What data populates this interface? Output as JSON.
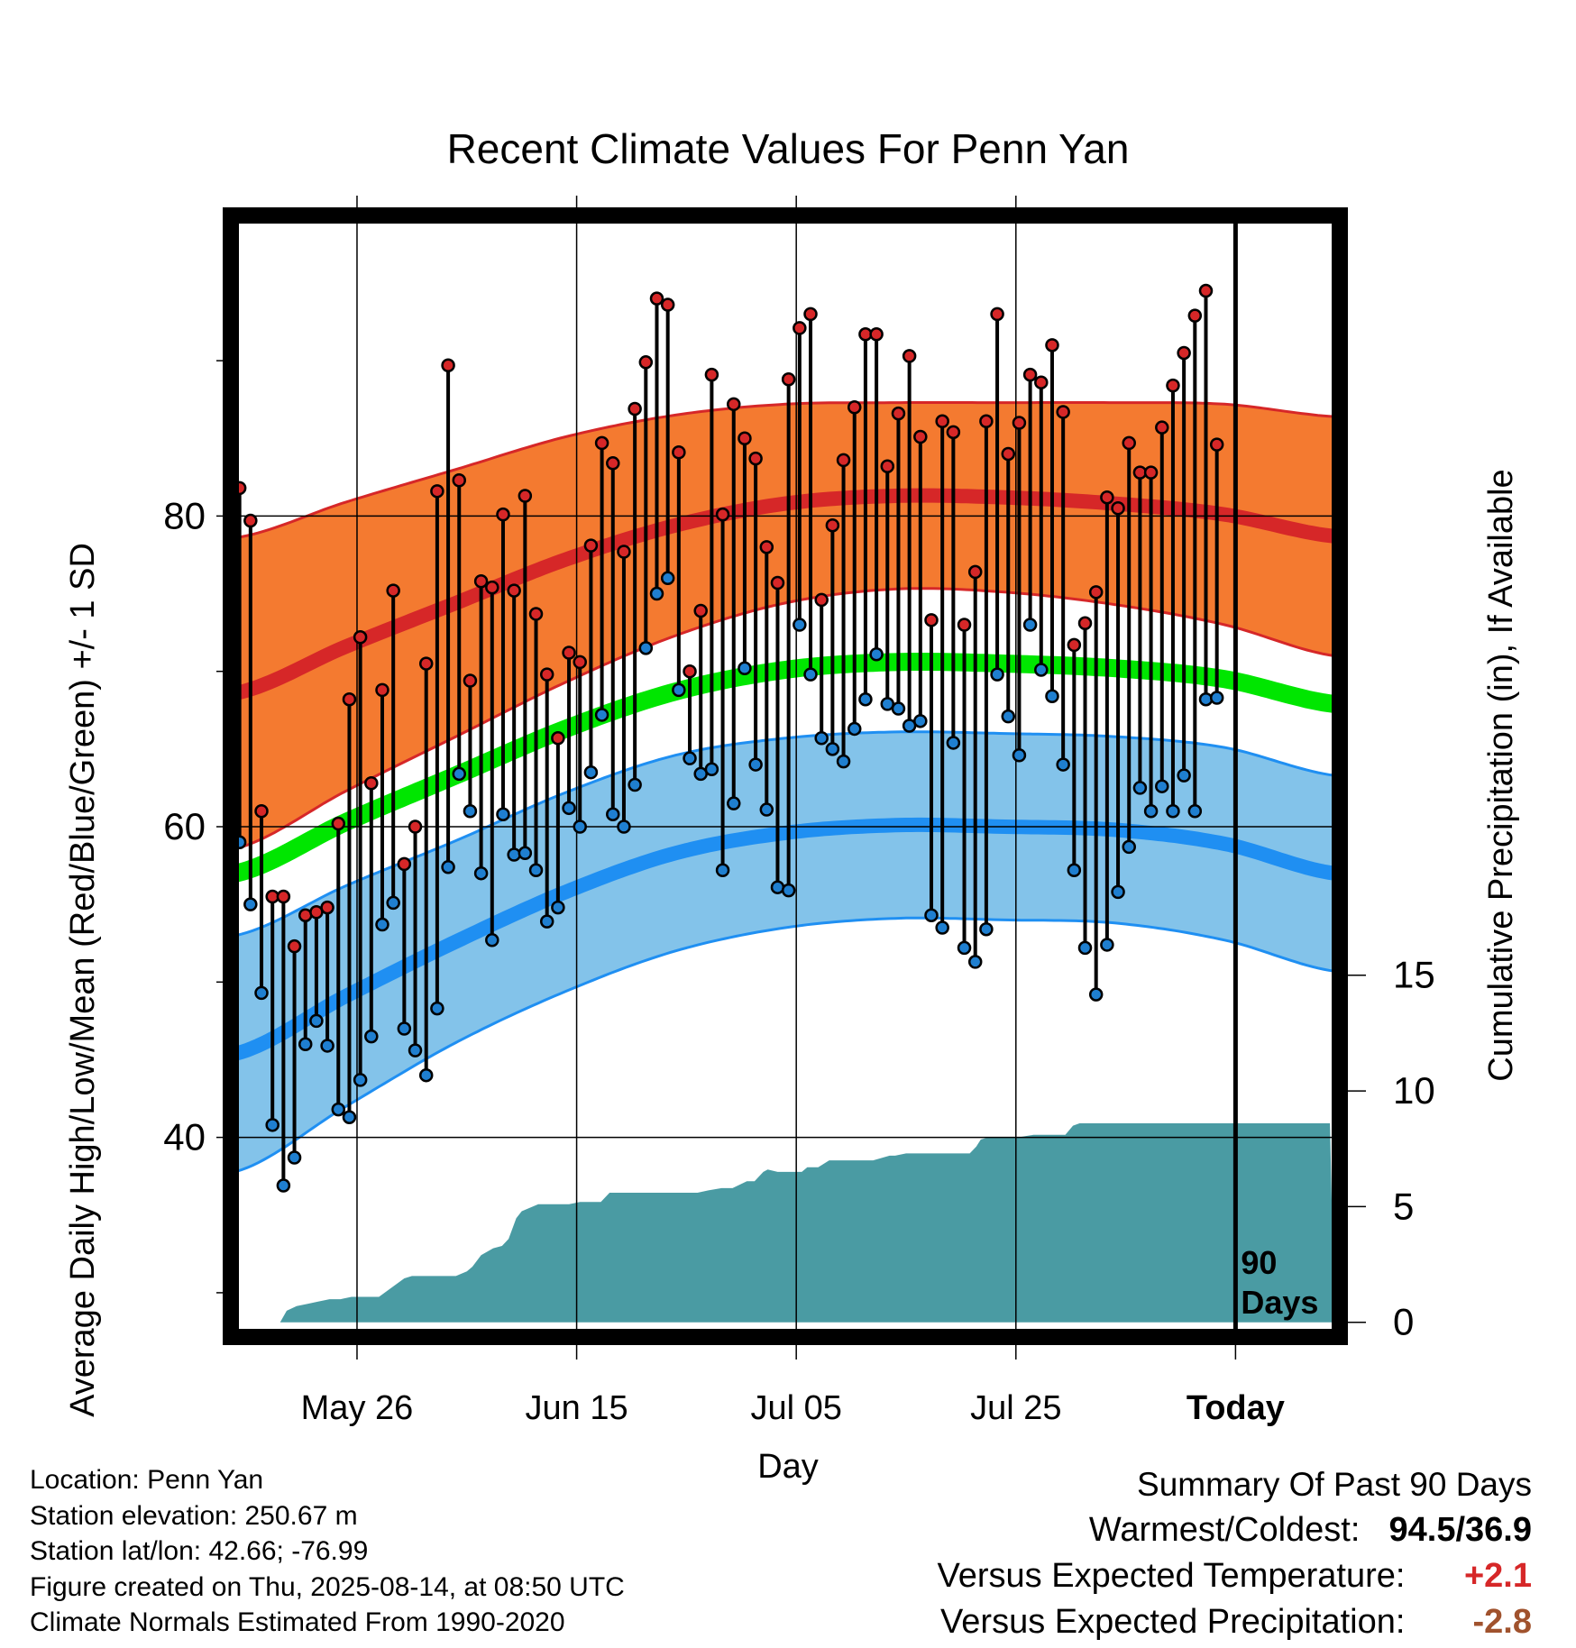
{
  "chart_data": {
    "type": "line",
    "title": "Recent Climate Values For Penn Yan",
    "xlabel": "Day",
    "ylabel": "Average Daily High/Low/Mean (Red/Blue/Green) +/- 1 SD",
    "y2label": "Cumulative Precipitation (in), If Available",
    "y_ticks": [
      40,
      60,
      80
    ],
    "y2_ticks": [
      0,
      5,
      10,
      15
    ],
    "x_ticks": [
      "May 26",
      "Jun 15",
      "Jul 05",
      "Jul 25",
      "Today"
    ],
    "x_tick_days": [
      11,
      31,
      51,
      71,
      91
    ],
    "x_range_days": [
      0,
      100
    ],
    "ylim": [
      27.5,
      99.0
    ],
    "y2lim": [
      -0.4,
      47.6
    ],
    "grid": true,
    "window_label": "90\nDays",
    "colors": {
      "high_band": "#f47a30",
      "high_mean": "#d62728",
      "low_band": "#83c3ea",
      "low_mean": "#1f8ff2",
      "mean": "#00e600",
      "precip": "#4a9ba3",
      "high_point": "#d62728",
      "low_point": "#1f7fd0"
    },
    "normals": {
      "day": [
        0,
        10,
        20,
        30,
        40,
        50,
        60,
        70,
        80,
        90,
        100
      ],
      "high_mean": [
        68.6,
        71.6,
        74.4,
        77.2,
        79.4,
        80.8,
        81.3,
        81.2,
        80.8,
        80.1,
        78.7
      ],
      "high_sd": [
        10.0,
        9.3,
        8.6,
        7.9,
        7.1,
        6.4,
        6.0,
        6.1,
        6.5,
        7.1,
        7.7
      ],
      "low_mean": [
        45.4,
        49.1,
        52.6,
        55.8,
        58.3,
        59.6,
        60.1,
        60.0,
        59.8,
        58.9,
        57.0
      ],
      "low_sd": [
        7.6,
        7.1,
        6.5,
        6.4,
        6.3,
        6.1,
        6.0,
        6.0,
        6.0,
        6.2,
        6.3
      ],
      "mean": [
        57.0,
        60.3,
        63.3,
        66.3,
        68.7,
        70.1,
        70.6,
        70.5,
        70.2,
        69.5,
        67.9
      ]
    },
    "series": [
      {
        "name": "High",
        "day_start": 0,
        "values": [
          81.8,
          79.7,
          61.0,
          55.5,
          55.5,
          52.3,
          54.3,
          54.5,
          54.8,
          60.2,
          68.2,
          72.2,
          62.8,
          68.8,
          75.2,
          57.6,
          60.0,
          70.5,
          81.6,
          89.7,
          82.3,
          69.4,
          75.8,
          75.4,
          80.1,
          75.2,
          81.3,
          73.7,
          69.8,
          65.7,
          71.2,
          70.6,
          78.1,
          84.7,
          83.4,
          77.7,
          86.9,
          89.9,
          94.0,
          93.6,
          84.1,
          70.0,
          73.9,
          89.1,
          80.1,
          87.2,
          85.0,
          83.7,
          78.0,
          75.7,
          88.8,
          92.1,
          93.0,
          74.6,
          79.4,
          83.6,
          87.0,
          91.7,
          91.7,
          83.2,
          86.6,
          90.3,
          85.1,
          73.3,
          86.1,
          85.4,
          73.0,
          76.4,
          86.1,
          93.0,
          84.0,
          86.0,
          89.1,
          88.6,
          91.0,
          86.7,
          71.7,
          73.1,
          75.1,
          81.2,
          80.5,
          84.7,
          82.8,
          82.8,
          85.7,
          88.4,
          90.5,
          92.9,
          94.5,
          84.6
        ]
      },
      {
        "name": "Low",
        "day_start": 0,
        "values": [
          59.0,
          55.0,
          49.3,
          40.8,
          36.9,
          38.7,
          46.0,
          47.5,
          45.9,
          41.8,
          41.3,
          43.7,
          46.5,
          53.7,
          55.1,
          47.0,
          45.6,
          44.0,
          48.3,
          57.4,
          63.4,
          61.0,
          57.0,
          52.7,
          60.8,
          58.2,
          58.3,
          57.2,
          53.9,
          54.8,
          61.2,
          60.0,
          63.5,
          67.2,
          60.8,
          60.0,
          62.7,
          71.5,
          75.0,
          76.0,
          68.8,
          64.4,
          63.4,
          63.7,
          57.2,
          61.5,
          70.2,
          64.0,
          61.1,
          56.1,
          55.9,
          73.0,
          69.8,
          65.7,
          65.0,
          64.2,
          66.3,
          68.2,
          71.1,
          67.9,
          67.6,
          66.5,
          66.8,
          54.3,
          53.5,
          65.4,
          52.2,
          51.3,
          53.4,
          69.8,
          67.1,
          64.6,
          73.0,
          70.1,
          68.4,
          64.0,
          57.2,
          52.2,
          49.2,
          52.4,
          55.8,
          58.7,
          62.5,
          61.0,
          62.6,
          61.0,
          63.3,
          61.0,
          68.2,
          68.3
        ]
      }
    ],
    "precip_cumulative": {
      "day": [
        0,
        4,
        4.6,
        5.5,
        6.5,
        7.5,
        8.5,
        9.5,
        10.5,
        11.5,
        12.3,
        13,
        15.3,
        16,
        20,
        21,
        21.5,
        22.3,
        23.4,
        24.2,
        24.8,
        25.5,
        26,
        27.5,
        29,
        30.3,
        31.3,
        33.2,
        34,
        34.8,
        35.8,
        42,
        43,
        44.2,
        45.2,
        46.5,
        47.2,
        48,
        48.4,
        49.3,
        51.5,
        52,
        53,
        54,
        55.5,
        58,
        59.5,
        60,
        61,
        66.8,
        67.4,
        67.8,
        68.5,
        69.5,
        71.3,
        72.6,
        75.5,
        76.2,
        76.8,
        77.6,
        78.5,
        99.6
      ],
      "value": [
        0,
        0,
        0.5,
        0.7,
        0.8,
        0.9,
        1.0,
        1.0,
        1.1,
        1.1,
        1.1,
        1.1,
        1.9,
        2.0,
        2.0,
        2.2,
        2.4,
        2.9,
        3.2,
        3.3,
        3.6,
        4.5,
        4.8,
        5.1,
        5.1,
        5.1,
        5.2,
        5.2,
        5.6,
        5.6,
        5.6,
        5.6,
        5.7,
        5.8,
        5.8,
        6.1,
        6.1,
        6.5,
        6.6,
        6.5,
        6.5,
        6.7,
        6.7,
        7.0,
        7.0,
        7.0,
        7.2,
        7.2,
        7.3,
        7.3,
        7.6,
        7.9,
        8.0,
        8.0,
        8.0,
        8.1,
        8.1,
        8.5,
        8.6,
        8.6,
        8.6,
        8.6
      ]
    }
  },
  "footer": {
    "location": "Location: Penn Yan",
    "elevation": "Station elevation: 250.67 m",
    "latlon": "Station lat/lon: 42.66; -76.99",
    "created": "Figure created on Thu, 2025-08-14, at 08:50 UTC",
    "normals": "Climate Normals Estimated From 1990-2020"
  },
  "summary": {
    "title": "Summary Of Past 90 Days",
    "warmest_label": "Warmest/Coldest:",
    "warmest_value": "94.5/36.9",
    "temp_label": "Versus Expected Temperature:",
    "temp_value": "+2.1",
    "temp_color": "#d62728",
    "precip_label": "Versus Expected Precipitation:",
    "precip_value": "-2.8",
    "precip_color": "#a0522d"
  }
}
